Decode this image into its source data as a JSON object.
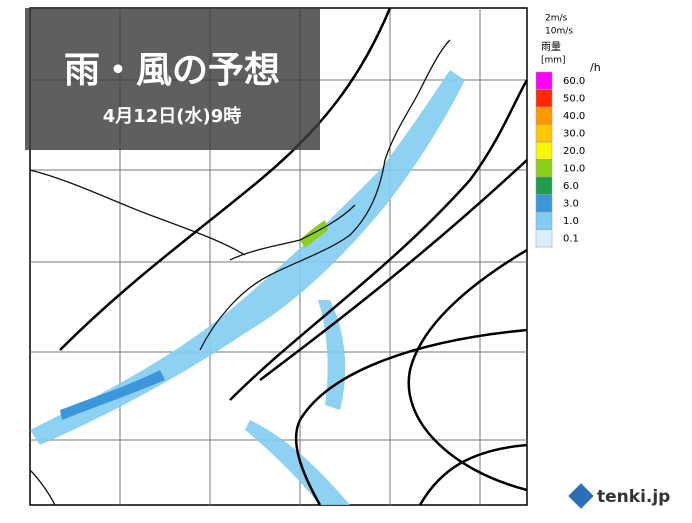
{
  "header": {
    "title": "雨・風の予想",
    "subtitle": "4月12日(水)9時"
  },
  "legend": {
    "wind": [
      "2m/s",
      "10m/s"
    ],
    "title": "雨量",
    "unit": "[mm]",
    "per": "/h",
    "levels": [
      {
        "label": "60.0",
        "color": "#f0f"
      },
      {
        "label": "50.0",
        "color": "#ff2800"
      },
      {
        "label": "40.0",
        "color": "#ff9900"
      },
      {
        "label": "30.0",
        "color": "#ffc800"
      },
      {
        "label": "20.0",
        "color": "#faf500"
      },
      {
        "label": "10.0",
        "color": "#8ccf1e"
      },
      {
        "label": "6.0",
        "color": "#1e9e4a"
      },
      {
        "label": "3.0",
        "color": "#3c96dc"
      },
      {
        "label": "1.0",
        "color": "#82cdf2"
      },
      {
        "label": "0.1",
        "color": "#d7f0fb"
      }
    ]
  },
  "brand": "tenki.jp"
}
